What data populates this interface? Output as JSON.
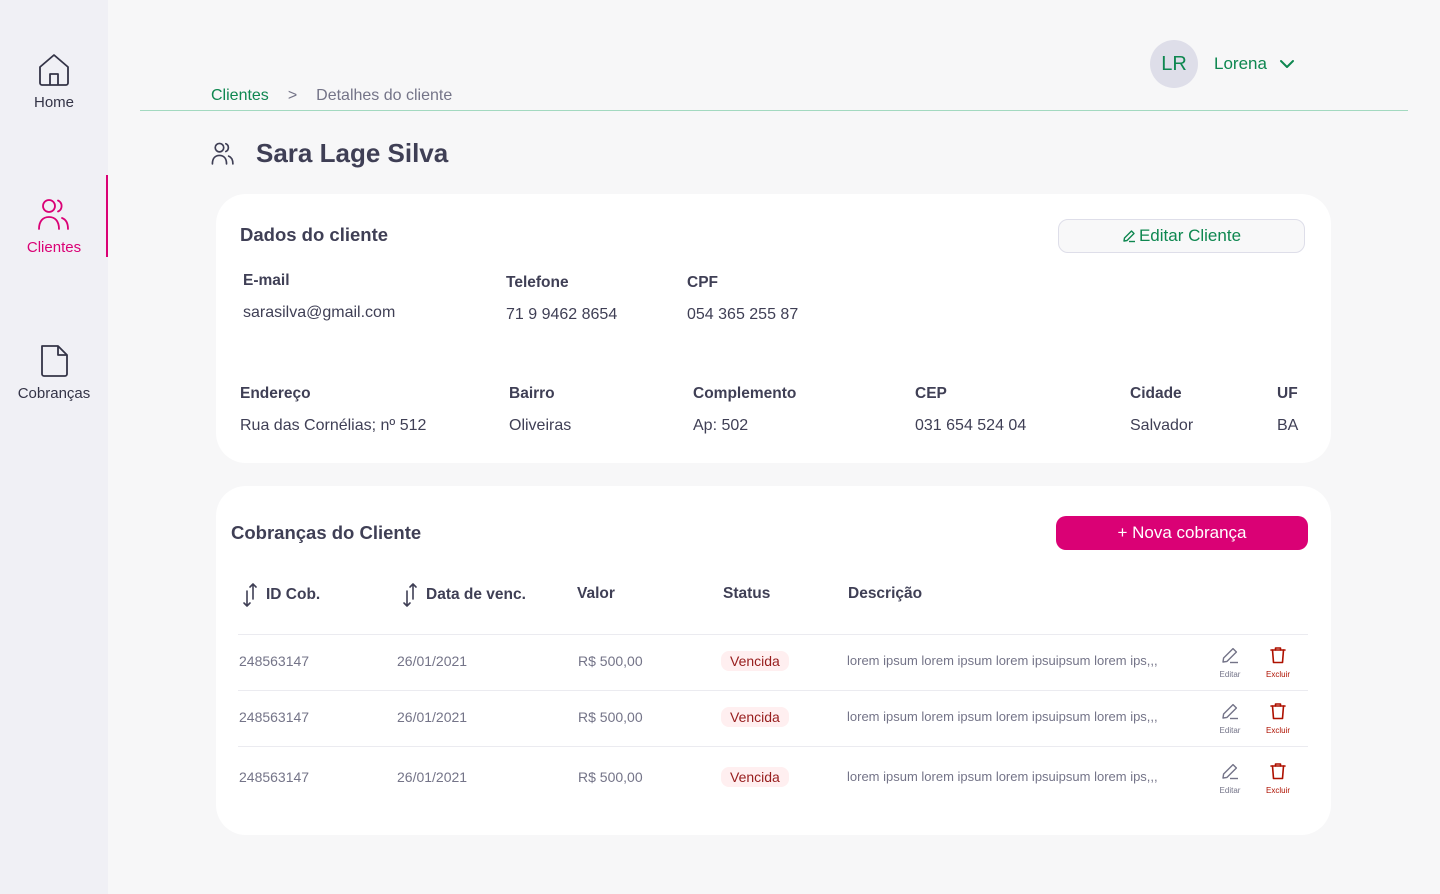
{
  "sidebar": {
    "items": [
      {
        "label": "Home",
        "icon": "home-icon"
      },
      {
        "label": "Clientes",
        "icon": "users-icon",
        "active": true
      },
      {
        "label": "Cobranças",
        "icon": "document-icon"
      }
    ]
  },
  "header": {
    "user_initials": "LR",
    "user_name": "Lorena"
  },
  "breadcrumb": {
    "parent": "Clientes",
    "separator": ">",
    "current": "Detalhes do cliente"
  },
  "page": {
    "title": "Sara Lage Silva"
  },
  "client_card": {
    "title": "Dados do cliente",
    "edit_button": "Editar Cliente",
    "fields": {
      "email": {
        "label": "E-mail",
        "value": "sarasilva@gmail.com"
      },
      "telefone": {
        "label": "Telefone",
        "value": "71 9 9462 8654"
      },
      "cpf": {
        "label": "CPF",
        "value": "054 365 255 87"
      },
      "endereco": {
        "label": "Endereço",
        "value": "Rua das Cornélias; nº 512"
      },
      "bairro": {
        "label": "Bairro",
        "value": "Oliveiras"
      },
      "complemento": {
        "label": "Complemento",
        "value": "Ap: 502"
      },
      "cep": {
        "label": "CEP",
        "value": "031 654 524 04"
      },
      "cidade": {
        "label": "Cidade",
        "value": "Salvador"
      },
      "uf": {
        "label": "UF",
        "value": "BA"
      }
    }
  },
  "charges_card": {
    "title": "Cobranças do Cliente",
    "new_button": "+ Nova cobrança",
    "columns": {
      "id": "ID Cob.",
      "date": "Data de venc.",
      "value": "Valor",
      "status": "Status",
      "description": "Descrição"
    },
    "action_labels": {
      "edit": "Editar",
      "delete": "Excluir"
    },
    "rows": [
      {
        "id": "248563147",
        "date": "26/01/2021",
        "value": "R$ 500,00",
        "status": "Vencida",
        "description": "lorem ipsum  lorem ipsum lorem ipsuipsum lorem ips,,,"
      },
      {
        "id": "248563147",
        "date": "26/01/2021",
        "value": "R$ 500,00",
        "status": "Vencida",
        "description": "lorem ipsum  lorem ipsum lorem ipsuipsum lorem ips,,,"
      },
      {
        "id": "248563147",
        "date": "26/01/2021",
        "value": "R$ 500,00",
        "status": "Vencida",
        "description": "lorem ipsum  lorem ipsum lorem ipsuipsum lorem ips,,,"
      }
    ]
  },
  "colors": {
    "accent_green": "#0e8750",
    "accent_pink": "#da0175",
    "status_overdue_bg": "#ffeff0",
    "status_overdue_text": "#971d1d"
  }
}
